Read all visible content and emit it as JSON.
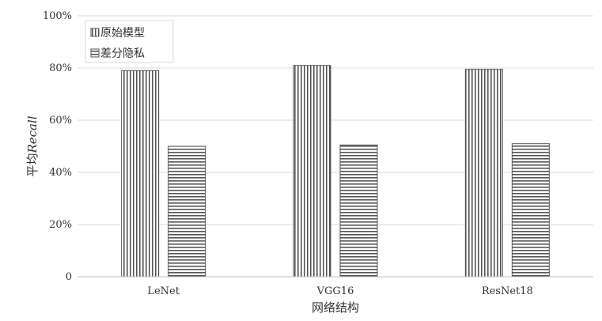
{
  "chart_data": {
    "type": "bar",
    "categories": [
      "LeNet",
      "VGG16",
      "ResNet18"
    ],
    "series": [
      {
        "name": "原始模型",
        "values": [
          79,
          81,
          79.5
        ],
        "pattern": "vertical-stripes"
      },
      {
        "name": "差分隐私",
        "values": [
          50,
          50.5,
          51
        ],
        "pattern": "horizontal-stripes"
      }
    ],
    "yticks": [
      "0",
      "20%",
      "40%",
      "60%",
      "80%",
      "100%"
    ],
    "ylim": [
      0,
      100
    ],
    "xlabel": "网络结构",
    "ylabel_prefix": "平均",
    "ylabel_italic": "Recall",
    "legend_position": "top-left",
    "grid": true,
    "colors": {
      "stroke": "#555555",
      "grid": "#d9d9d9",
      "axis": "#bfbfbf"
    }
  }
}
